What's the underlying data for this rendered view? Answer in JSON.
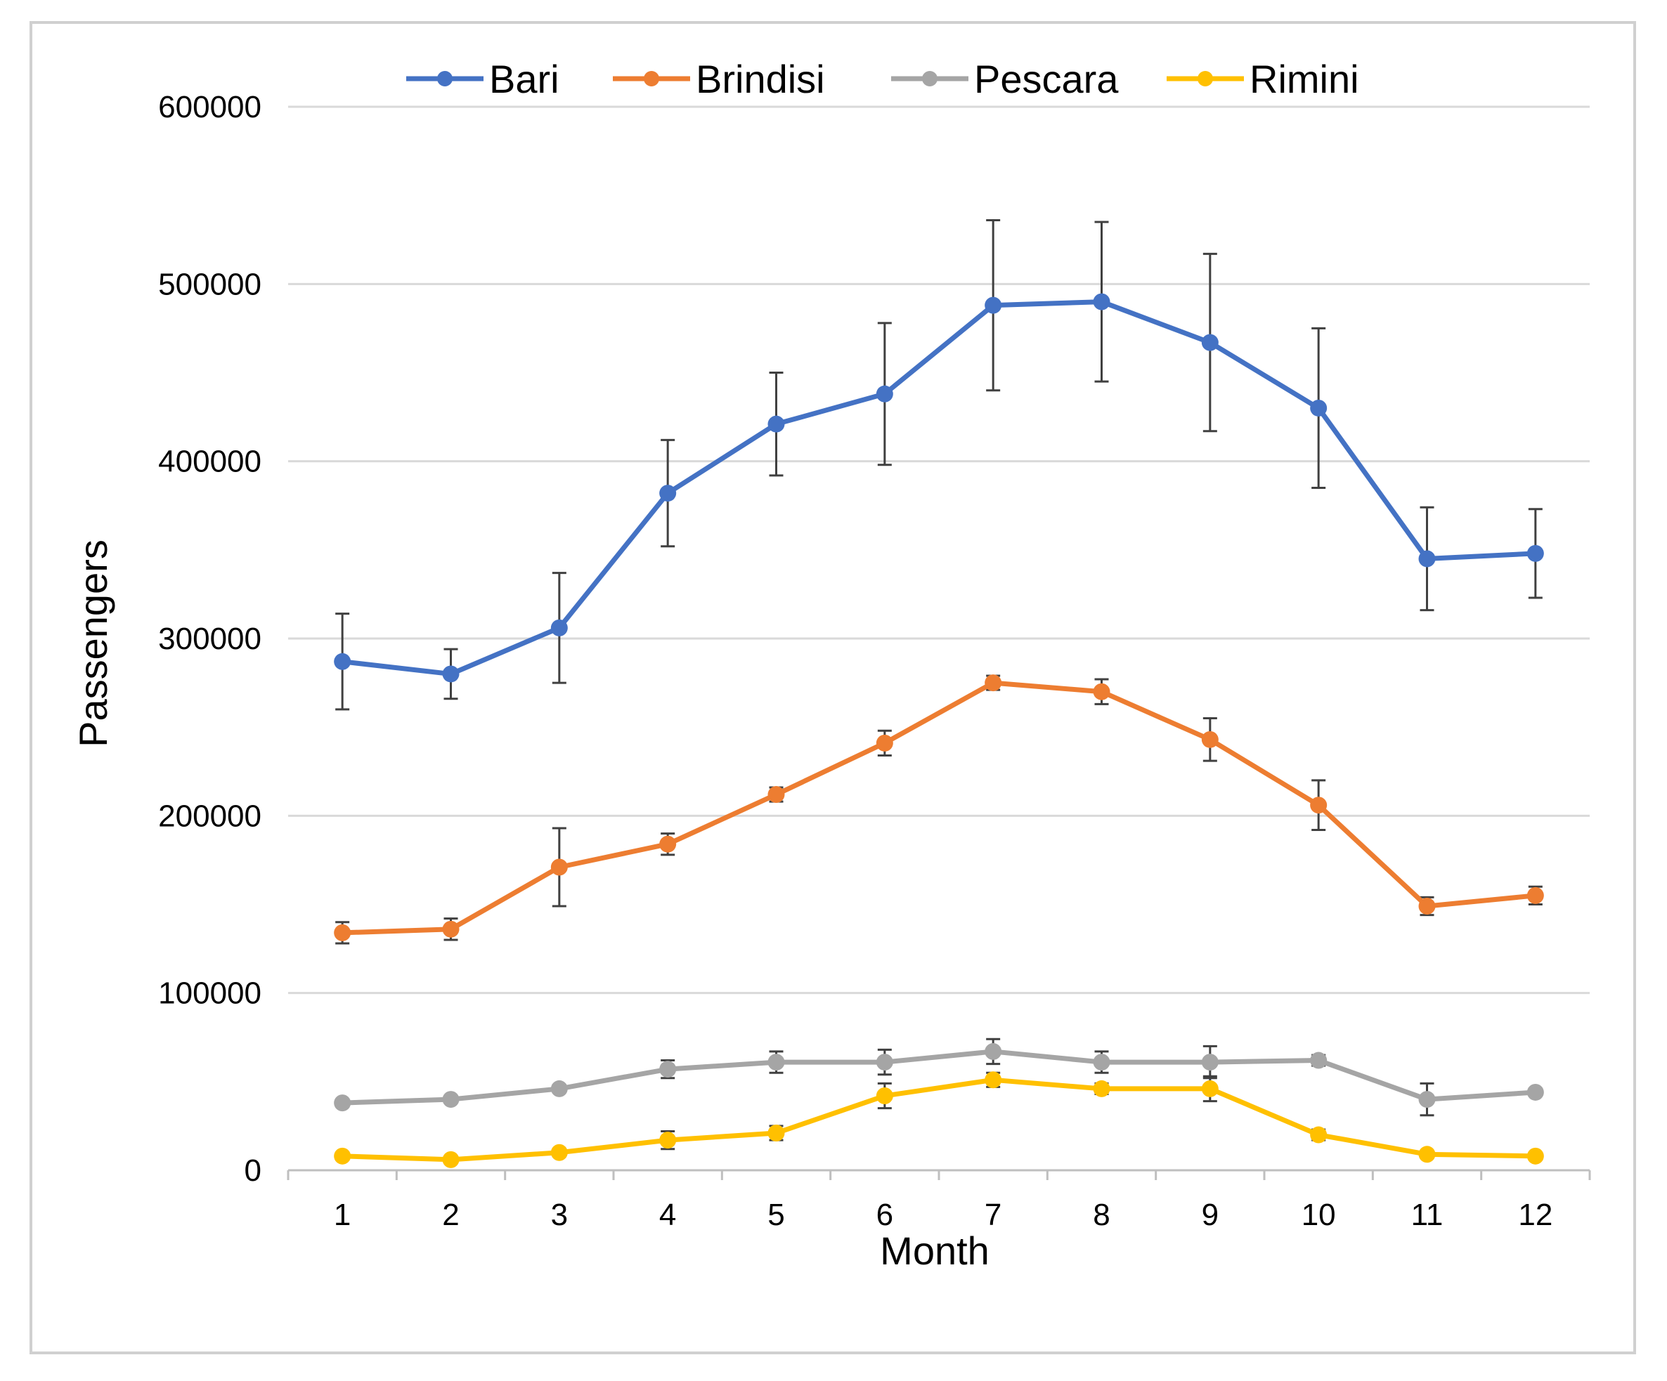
{
  "chart_data": {
    "type": "line",
    "title": "",
    "xlabel": "Month",
    "ylabel": "Passengers",
    "x": [
      1,
      2,
      3,
      4,
      5,
      6,
      7,
      8,
      9,
      10,
      11,
      12
    ],
    "x_tick_labels": [
      "1",
      "2",
      "3",
      "4",
      "5",
      "6",
      "7",
      "8",
      "9",
      "10",
      "11",
      "12"
    ],
    "ylim": [
      0,
      600000
    ],
    "y_ticks": [
      0,
      100000,
      200000,
      300000,
      400000,
      500000,
      600000
    ],
    "y_tick_labels": [
      "0",
      "100000",
      "200000",
      "300000",
      "400000",
      "500000",
      "600000"
    ],
    "grid": "horizontal",
    "legend_position": "top",
    "series": [
      {
        "name": "Bari",
        "color": "#4472C4",
        "values": [
          287000,
          280000,
          306000,
          382000,
          421000,
          438000,
          488000,
          490000,
          467000,
          430000,
          345000,
          348000
        ],
        "error": [
          27000,
          14000,
          31000,
          30000,
          29000,
          40000,
          48000,
          45000,
          50000,
          45000,
          29000,
          25000
        ]
      },
      {
        "name": "Brindisi",
        "color": "#ED7D31",
        "values": [
          134000,
          136000,
          171000,
          184000,
          212000,
          241000,
          275000,
          270000,
          243000,
          206000,
          149000,
          155000
        ],
        "error": [
          6000,
          6000,
          22000,
          6000,
          4000,
          7000,
          4000,
          7000,
          12000,
          14000,
          5000,
          5000
        ]
      },
      {
        "name": "Pescara",
        "color": "#A5A5A5",
        "values": [
          38000,
          40000,
          46000,
          57000,
          61000,
          61000,
          67000,
          61000,
          61000,
          62000,
          40000,
          44000
        ],
        "error": [
          2000,
          2000,
          2000,
          5000,
          6000,
          7000,
          7000,
          6000,
          9000,
          3000,
          9000,
          2000
        ]
      },
      {
        "name": "Rimini",
        "color": "#FFC000",
        "values": [
          8000,
          6000,
          10000,
          17000,
          21000,
          42000,
          51000,
          46000,
          46000,
          20000,
          9000,
          8000
        ],
        "error": [
          2000,
          1500,
          2000,
          5000,
          4000,
          7000,
          4000,
          3000,
          7000,
          3000,
          2000,
          1500
        ]
      }
    ]
  }
}
